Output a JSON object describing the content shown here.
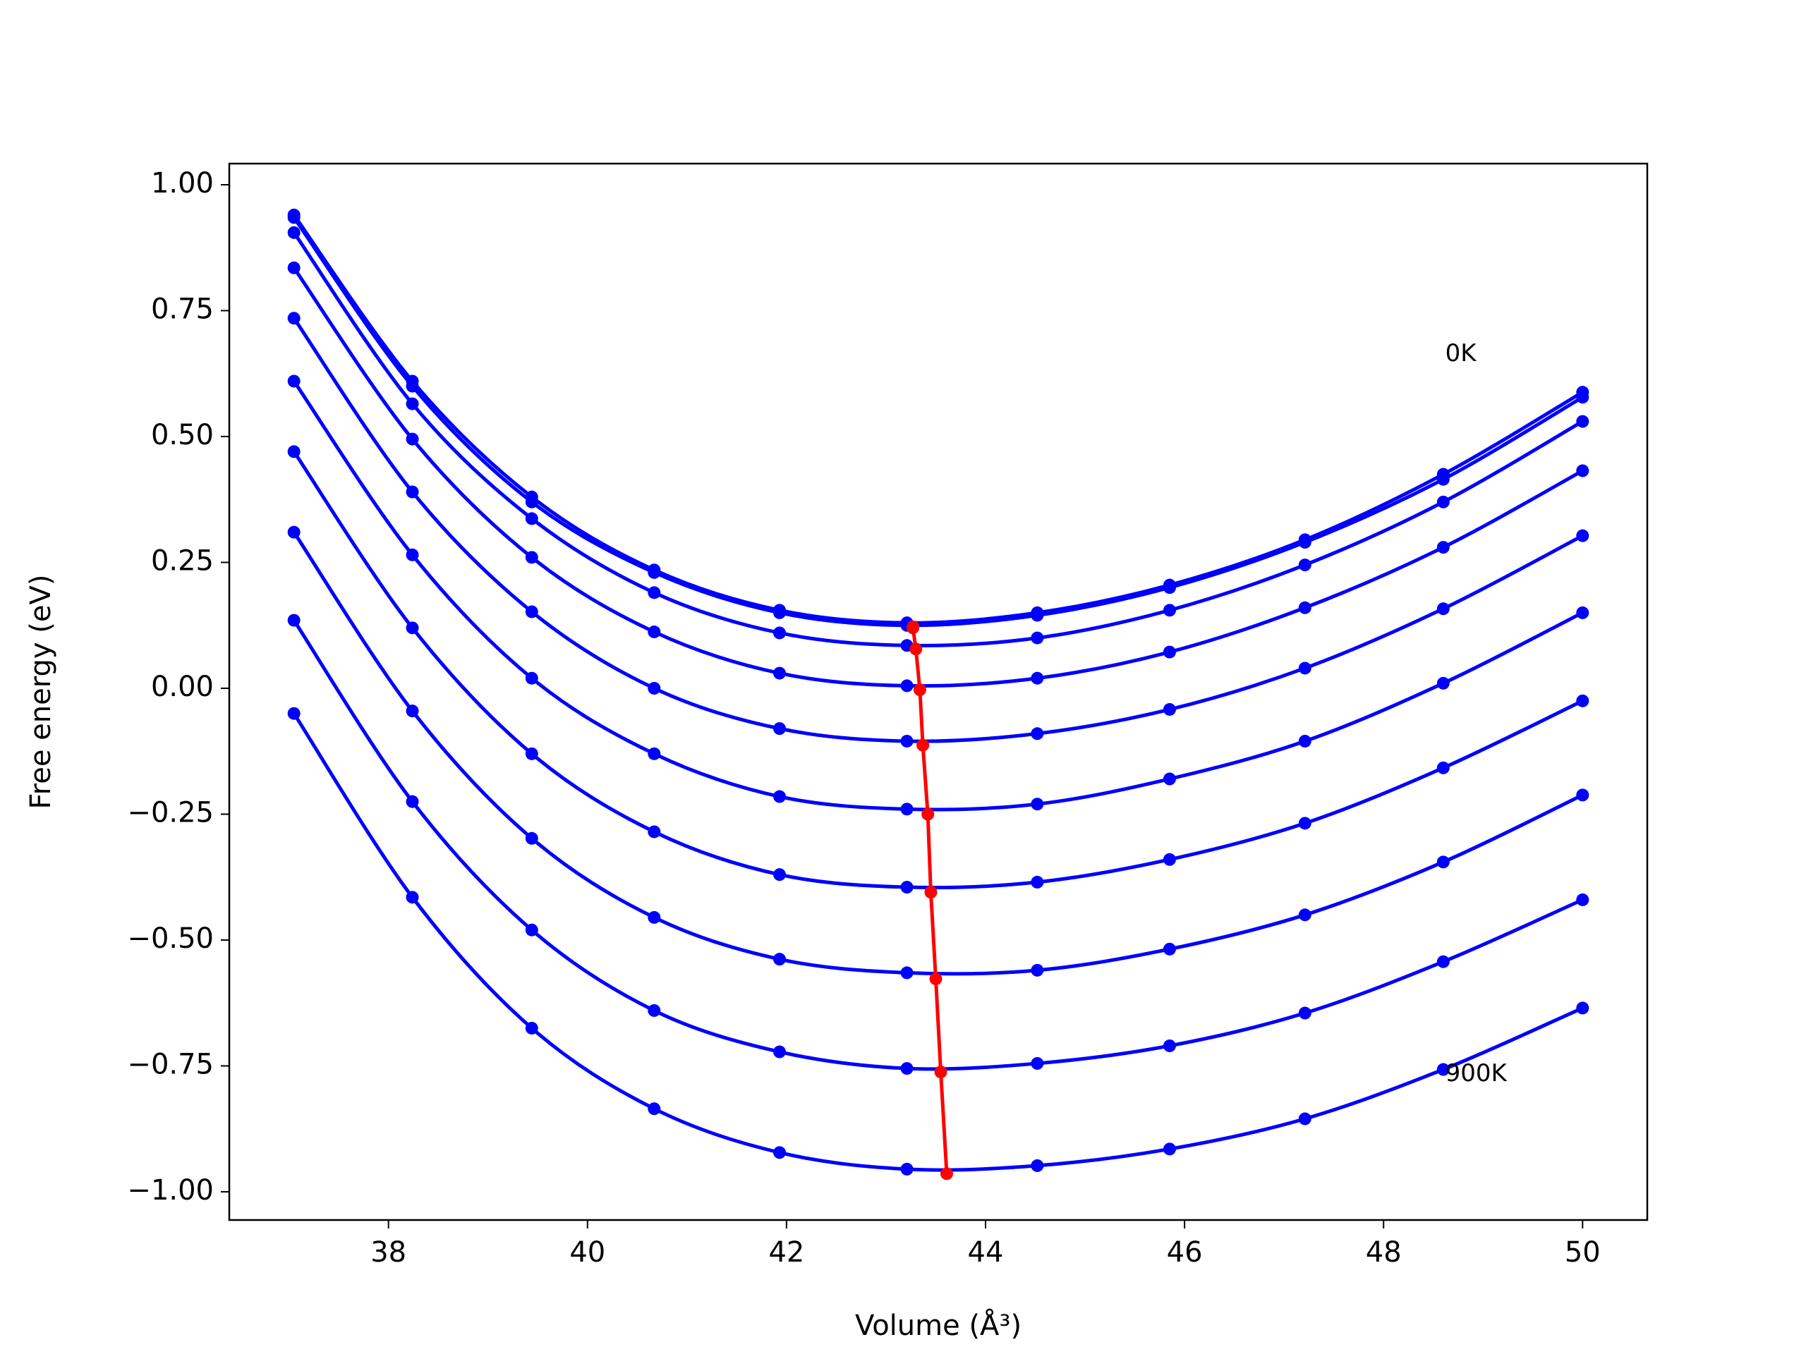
{
  "chart_data": {
    "type": "line",
    "xlabel": "Volume (Å³)",
    "ylabel": "Free energy (eV)",
    "x": [
      37.05,
      38.24,
      39.44,
      40.67,
      41.93,
      43.21,
      44.52,
      45.85,
      47.21,
      48.6,
      50.0
    ],
    "series": [
      {
        "color": "#0000ff",
        "values": [
          0.94,
          0.61,
          0.38,
          0.235,
          0.155,
          0.13,
          0.15,
          0.205,
          0.295,
          0.425,
          0.588
        ]
      },
      {
        "color": "#0000ff",
        "values": [
          0.935,
          0.6,
          0.37,
          0.23,
          0.15,
          0.125,
          0.145,
          0.2,
          0.29,
          0.415,
          0.578
        ]
      },
      {
        "color": "#0000ff",
        "values": [
          0.905,
          0.565,
          0.337,
          0.19,
          0.11,
          0.085,
          0.1,
          0.155,
          0.245,
          0.37,
          0.53
        ]
      },
      {
        "color": "#0000ff",
        "values": [
          0.835,
          0.495,
          0.26,
          0.112,
          0.03,
          0.005,
          0.02,
          0.072,
          0.16,
          0.28,
          0.432
        ]
      },
      {
        "color": "#0000ff",
        "values": [
          0.735,
          0.39,
          0.152,
          0.0,
          -0.08,
          -0.105,
          -0.09,
          -0.042,
          0.04,
          0.158,
          0.303
        ]
      },
      {
        "color": "#0000ff",
        "values": [
          0.61,
          0.265,
          0.02,
          -0.13,
          -0.215,
          -0.24,
          -0.23,
          -0.18,
          -0.105,
          0.01,
          0.15
        ]
      },
      {
        "color": "#0000ff",
        "values": [
          0.47,
          0.12,
          -0.13,
          -0.285,
          -0.37,
          -0.395,
          -0.385,
          -0.34,
          -0.268,
          -0.158,
          -0.025
        ]
      },
      {
        "color": "#0000ff",
        "values": [
          0.31,
          -0.045,
          -0.298,
          -0.455,
          -0.538,
          -0.565,
          -0.56,
          -0.518,
          -0.45,
          -0.345,
          -0.212
        ]
      },
      {
        "color": "#0000ff",
        "values": [
          0.135,
          -0.225,
          -0.48,
          -0.64,
          -0.722,
          -0.755,
          -0.745,
          -0.71,
          -0.645,
          -0.543,
          -0.42
        ]
      },
      {
        "color": "#0000ff",
        "values": [
          -0.05,
          -0.415,
          -0.675,
          -0.835,
          -0.922,
          -0.955,
          -0.948,
          -0.915,
          -0.855,
          -0.757,
          -0.635
        ]
      },
      {
        "color": "#ff0000",
        "x": [
          43.27,
          43.27,
          43.3,
          43.34,
          43.37,
          43.42,
          43.45,
          43.5,
          43.55,
          43.61
        ],
        "values": [
          0.122,
          0.12,
          0.078,
          -0.003,
          -0.113,
          -0.25,
          -0.405,
          -0.577,
          -0.762,
          -0.964
        ]
      }
    ],
    "annotations": [
      {
        "text": "0K",
        "x": 48.62,
        "y": 0.663
      },
      {
        "text": "900K",
        "x": 48.62,
        "y": -0.767
      }
    ],
    "xlim": [
      36.4,
      50.65
    ],
    "ylim": [
      -1.056,
      1.042
    ],
    "xticks": [
      38,
      40,
      42,
      44,
      46,
      48,
      50
    ],
    "yticks": [
      {
        "value": 1.0,
        "label": "1.00"
      },
      {
        "value": 0.75,
        "label": "0.75"
      },
      {
        "value": 0.5,
        "label": "0.50"
      },
      {
        "value": 0.25,
        "label": "0.25"
      },
      {
        "value": 0.0,
        "label": "0.00"
      },
      {
        "value": -0.25,
        "label": "−0.25"
      },
      {
        "value": -0.5,
        "label": "−0.50"
      },
      {
        "value": -0.75,
        "label": "−0.75"
      },
      {
        "value": -1.0,
        "label": "−1.00"
      }
    ],
    "grid": false
  }
}
